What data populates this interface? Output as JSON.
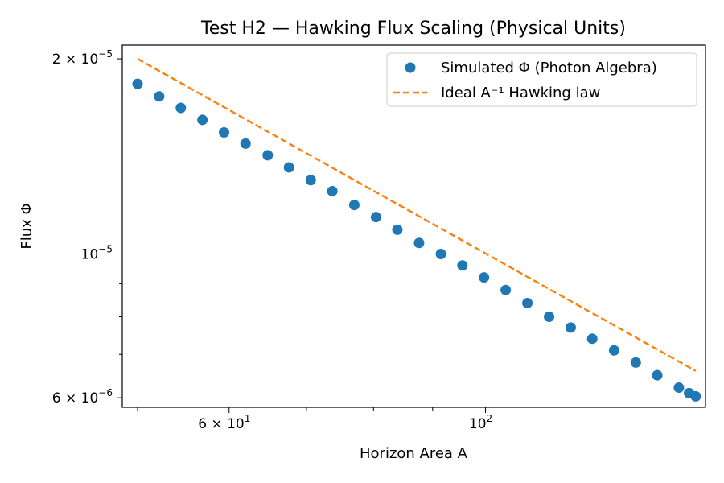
{
  "chart_data": {
    "type": "scatter",
    "title": "Test H2 — Hawking Flux Scaling (Physical Units)",
    "xlabel": "Horizon Area A",
    "ylabel": "Flux Φ",
    "xscale": "log",
    "yscale": "log",
    "xlim": [
      48.5,
      155
    ],
    "ylim": [
      5.8e-06,
      2.1e-05
    ],
    "grid": false,
    "legend_position": "top-right",
    "x_ticks": [
      {
        "value": 60,
        "base": "6 × 10",
        "exp": "1"
      },
      {
        "value": 100,
        "base": "10",
        "exp": "2"
      }
    ],
    "y_ticks": [
      {
        "value": 2e-05,
        "base": "2 × 10",
        "exp": "−5"
      },
      {
        "value": 1e-05,
        "base": "10",
        "exp": "−5"
      },
      {
        "value": 6e-06,
        "base": "6 × 10",
        "exp": "−6"
      }
    ],
    "series": [
      {
        "name": "Simulated Φ (Photon Algebra)",
        "style": "markers",
        "color": "#1f77b4",
        "x": [
          50.0,
          52.2,
          54.5,
          56.9,
          59.4,
          62.0,
          64.8,
          67.6,
          70.6,
          73.7,
          77.0,
          80.4,
          83.9,
          87.6,
          91.5,
          95.5,
          99.7,
          104.1,
          108.7,
          113.5,
          118.5,
          123.7,
          129.2,
          134.9,
          140.8,
          147.0,
          150.0,
          152.0
        ],
        "y": [
          1.83e-05,
          1.75e-05,
          1.68e-05,
          1.61e-05,
          1.54e-05,
          1.48e-05,
          1.42e-05,
          1.36e-05,
          1.3e-05,
          1.25e-05,
          1.19e-05,
          1.14e-05,
          1.09e-05,
          1.04e-05,
          1e-05,
          9.6e-06,
          9.2e-06,
          8.8e-06,
          8.4e-06,
          8e-06,
          7.7e-06,
          7.4e-06,
          7.1e-06,
          6.8e-06,
          6.5e-06,
          6.22e-06,
          6.1e-06,
          6.03e-06
        ]
      },
      {
        "name": "Ideal A⁻¹ Hawking law",
        "style": "dashed",
        "color": "#ff7f0e",
        "x": [
          50.0,
          152.0
        ],
        "y": [
          2e-05,
          6.6e-06
        ]
      }
    ]
  }
}
